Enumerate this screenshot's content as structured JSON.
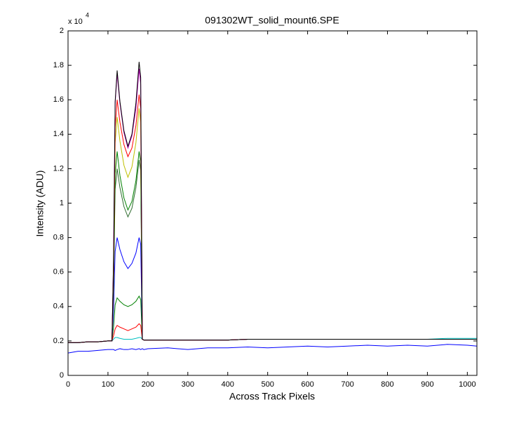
{
  "chart_data": {
    "type": "line",
    "title": "091302WT_solid_mount6.SPE",
    "xlabel": "Across Track Pixels",
    "ylabel": "Intensity (ADU)",
    "y_scale_label": "x 10",
    "y_scale_exponent": "4",
    "xlim": [
      0,
      1024
    ],
    "ylim": [
      0,
      2
    ],
    "xticks": [
      0,
      100,
      200,
      300,
      400,
      500,
      600,
      700,
      800,
      900,
      1000
    ],
    "yticks": [
      0,
      0.2,
      0.4,
      0.6,
      0.8,
      1,
      1.2,
      1.4,
      1.6,
      1.8,
      2
    ],
    "x": [
      0,
      25,
      50,
      75,
      100,
      110,
      114,
      118,
      123,
      130,
      140,
      150,
      160,
      170,
      178,
      182,
      186,
      190,
      200,
      250,
      300,
      350,
      400,
      450,
      500,
      550,
      600,
      650,
      700,
      750,
      800,
      850,
      900,
      950,
      1000,
      1024
    ],
    "series": [
      {
        "color": "#0000ff",
        "values": [
          0.13,
          0.14,
          0.14,
          0.145,
          0.15,
          0.15,
          0.15,
          0.145,
          0.15,
          0.155,
          0.15,
          0.15,
          0.155,
          0.15,
          0.155,
          0.15,
          0.155,
          0.15,
          0.155,
          0.16,
          0.15,
          0.16,
          0.16,
          0.165,
          0.16,
          0.165,
          0.17,
          0.165,
          0.17,
          0.175,
          0.17,
          0.175,
          0.17,
          0.18,
          0.175,
          0.17
        ]
      },
      {
        "color": "#00bfbf",
        "values": [
          0.19,
          0.19,
          0.195,
          0.195,
          0.2,
          0.2,
          0.21,
          0.22,
          0.22,
          0.215,
          0.21,
          0.21,
          0.21,
          0.215,
          0.22,
          0.22,
          0.21,
          0.205,
          0.205,
          0.205,
          0.205,
          0.205,
          0.205,
          0.21,
          0.21,
          0.21,
          0.21,
          0.21,
          0.21,
          0.21,
          0.21,
          0.21,
          0.21,
          0.215,
          0.215,
          0.215
        ]
      },
      {
        "color": "#ff0000",
        "values": [
          0.19,
          0.19,
          0.195,
          0.195,
          0.2,
          0.2,
          0.23,
          0.27,
          0.29,
          0.28,
          0.27,
          0.26,
          0.27,
          0.28,
          0.3,
          0.29,
          0.21,
          0.205,
          0.205,
          0.205,
          0.205,
          0.205,
          0.205,
          0.21,
          0.21,
          0.21,
          0.21,
          0.21,
          0.21,
          0.21,
          0.21,
          0.21,
          0.21,
          0.21,
          0.21,
          0.21
        ]
      },
      {
        "color": "#008000",
        "values": [
          0.19,
          0.19,
          0.195,
          0.195,
          0.2,
          0.2,
          0.28,
          0.41,
          0.45,
          0.43,
          0.41,
          0.4,
          0.41,
          0.43,
          0.46,
          0.44,
          0.21,
          0.205,
          0.205,
          0.205,
          0.205,
          0.205,
          0.205,
          0.21,
          0.21,
          0.21,
          0.21,
          0.21,
          0.21,
          0.21,
          0.21,
          0.21,
          0.21,
          0.21,
          0.21,
          0.21
        ]
      },
      {
        "color": "#0000ff",
        "values": [
          0.19,
          0.19,
          0.195,
          0.195,
          0.2,
          0.2,
          0.38,
          0.72,
          0.8,
          0.73,
          0.66,
          0.62,
          0.65,
          0.71,
          0.8,
          0.76,
          0.21,
          0.205,
          0.205,
          0.205,
          0.205,
          0.205,
          0.205,
          0.21,
          0.21,
          0.21,
          0.21,
          0.21,
          0.21,
          0.21,
          0.21,
          0.21,
          0.21,
          0.21,
          0.21,
          0.21
        ]
      },
      {
        "color": "#2e6b2e",
        "values": [
          0.19,
          0.19,
          0.195,
          0.195,
          0.2,
          0.2,
          0.5,
          1.08,
          1.2,
          1.09,
          0.98,
          0.92,
          0.97,
          1.09,
          1.25,
          1.19,
          0.21,
          0.205,
          0.205,
          0.205,
          0.205,
          0.205,
          0.205,
          0.21,
          0.21,
          0.21,
          0.21,
          0.21,
          0.21,
          0.21,
          0.21,
          0.21,
          0.21,
          0.21,
          0.21,
          0.21
        ]
      },
      {
        "color": "#008000",
        "values": [
          0.19,
          0.19,
          0.195,
          0.195,
          0.2,
          0.2,
          0.53,
          1.17,
          1.3,
          1.16,
          1.03,
          0.96,
          1.01,
          1.13,
          1.3,
          1.24,
          0.21,
          0.205,
          0.205,
          0.205,
          0.205,
          0.205,
          0.205,
          0.21,
          0.21,
          0.21,
          0.21,
          0.21,
          0.21,
          0.21,
          0.21,
          0.21,
          0.21,
          0.21,
          0.21,
          0.21
        ]
      },
      {
        "color": "#bfbf00",
        "values": [
          0.19,
          0.19,
          0.195,
          0.195,
          0.2,
          0.2,
          0.59,
          1.35,
          1.5,
          1.36,
          1.22,
          1.15,
          1.21,
          1.35,
          1.55,
          1.47,
          0.21,
          0.205,
          0.205,
          0.205,
          0.205,
          0.205,
          0.205,
          0.21,
          0.21,
          0.21,
          0.21,
          0.21,
          0.21,
          0.21,
          0.21,
          0.21,
          0.21,
          0.21,
          0.21,
          0.21
        ]
      },
      {
        "color": "#ff0000",
        "values": [
          0.19,
          0.19,
          0.195,
          0.195,
          0.2,
          0.2,
          0.62,
          1.44,
          1.6,
          1.47,
          1.34,
          1.27,
          1.32,
          1.45,
          1.63,
          1.55,
          0.21,
          0.205,
          0.205,
          0.205,
          0.205,
          0.205,
          0.205,
          0.21,
          0.21,
          0.21,
          0.21,
          0.21,
          0.21,
          0.21,
          0.21,
          0.21,
          0.21,
          0.21,
          0.21,
          0.21
        ]
      },
      {
        "color": "#bf00bf",
        "values": [
          0.19,
          0.19,
          0.195,
          0.195,
          0.2,
          0.2,
          0.67,
          1.58,
          1.75,
          1.58,
          1.41,
          1.32,
          1.39,
          1.55,
          1.78,
          1.69,
          0.21,
          0.205,
          0.205,
          0.205,
          0.205,
          0.205,
          0.205,
          0.21,
          0.21,
          0.21,
          0.21,
          0.21,
          0.21,
          0.21,
          0.21,
          0.21,
          0.21,
          0.21,
          0.21,
          0.21
        ]
      },
      {
        "color": "#000000",
        "values": [
          0.19,
          0.19,
          0.195,
          0.195,
          0.2,
          0.2,
          0.67,
          1.59,
          1.77,
          1.59,
          1.42,
          1.33,
          1.4,
          1.58,
          1.82,
          1.73,
          0.21,
          0.205,
          0.205,
          0.205,
          0.205,
          0.205,
          0.205,
          0.21,
          0.21,
          0.21,
          0.21,
          0.21,
          0.21,
          0.21,
          0.21,
          0.21,
          0.21,
          0.21,
          0.21,
          0.21
        ]
      }
    ]
  }
}
